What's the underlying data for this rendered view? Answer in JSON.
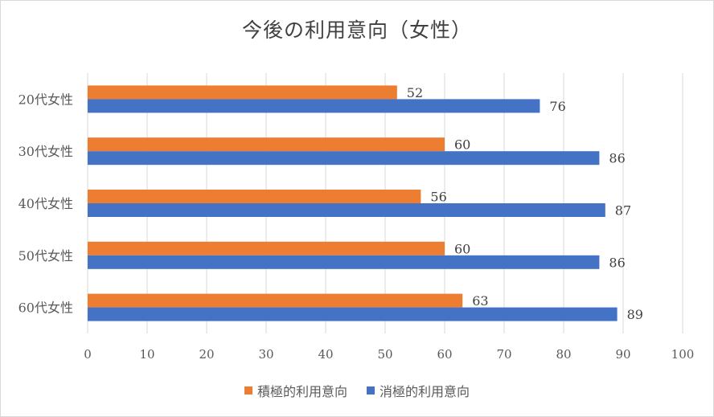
{
  "chart_data": {
    "type": "bar",
    "orientation": "horizontal",
    "title": "今後の利用意向（女性）",
    "categories": [
      "20代女性",
      "30代女性",
      "40代女性",
      "50代女性",
      "60代女性"
    ],
    "series": [
      {
        "name": "積極的利用意向",
        "color": "#ed7d31",
        "values": [
          52,
          60,
          56,
          60,
          63
        ]
      },
      {
        "name": "消極的利用意向",
        "color": "#4472c4",
        "values": [
          76,
          86,
          87,
          86,
          89
        ]
      }
    ],
    "xlim": [
      0,
      100
    ],
    "xticks": [
      "0",
      "10",
      "20",
      "30",
      "40",
      "50",
      "60",
      "70",
      "80",
      "90",
      "100"
    ],
    "grid": true,
    "data_labels": true,
    "legend_position": "bottom"
  }
}
